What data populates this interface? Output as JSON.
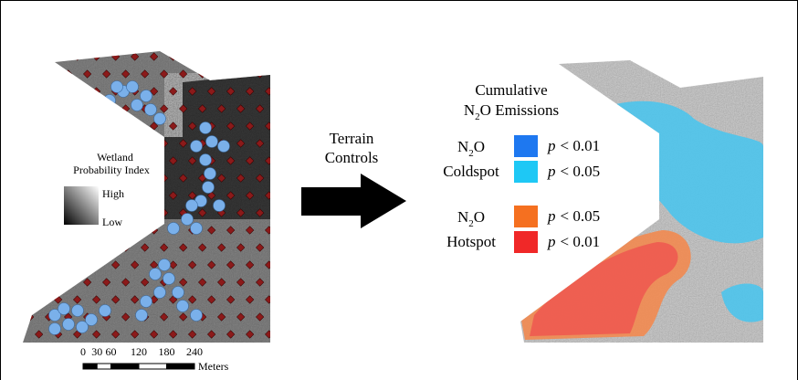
{
  "left_map": {
    "legend": {
      "title_lines": [
        "Wetland",
        "Probability Index"
      ],
      "high": "High",
      "low": "Low"
    },
    "scale_bar": {
      "labels": [
        0,
        30,
        60,
        120,
        180,
        240
      ],
      "unit": "Meters"
    }
  },
  "arrow": {
    "label_lines": [
      "Terrain",
      "Controls"
    ]
  },
  "right_map": {
    "legend": {
      "title_line1": "Cumulative",
      "title_line2": {
        "prefix": "N",
        "sub": "2",
        "suffix": "O Emissions"
      },
      "groups": [
        {
          "name": {
            "prefix": "N",
            "sub": "2",
            "suffix": "O"
          },
          "kind": "Coldspot",
          "items": [
            {
              "symbol": "p",
              "threshold": "< 0.01",
              "color": "#1e78f0"
            },
            {
              "symbol": "p",
              "threshold": "< 0.05",
              "color": "#1ec8f5"
            }
          ]
        },
        {
          "name": {
            "prefix": "N",
            "sub": "2",
            "suffix": "O"
          },
          "kind": "Hotspot",
          "items": [
            {
              "symbol": "p",
              "threshold": "< 0.05",
              "color": "#f57020"
            },
            {
              "symbol": "p",
              "threshold": "< 0.01",
              "color": "#f02828"
            }
          ]
        }
      ]
    }
  }
}
